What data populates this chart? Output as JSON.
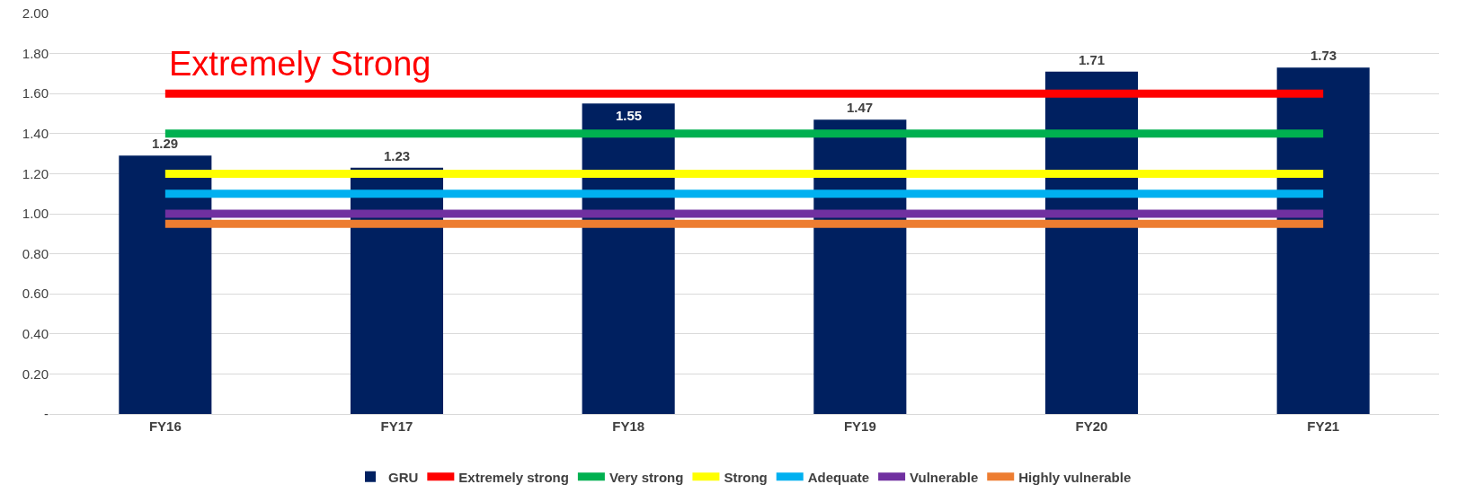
{
  "chart_data": {
    "type": "bar",
    "categories": [
      "FY16",
      "FY17",
      "FY18",
      "FY19",
      "FY20",
      "FY21"
    ],
    "series": [
      {
        "name": "GRU",
        "color": "#002060",
        "values": [
          1.29,
          1.23,
          1.55,
          1.47,
          1.71,
          1.73
        ],
        "value_labels": [
          "1.29",
          "1.23",
          "1.55",
          "1.47",
          "1.71",
          "1.73"
        ]
      },
      {
        "name": "Extremely strong",
        "type": "line",
        "color": "#ff0000",
        "values": [
          1.6,
          1.6,
          1.6,
          1.6,
          1.6,
          1.6
        ]
      },
      {
        "name": "Very strong",
        "type": "line",
        "color": "#00b050",
        "values": [
          1.4,
          1.4,
          1.4,
          1.4,
          1.4,
          1.4
        ]
      },
      {
        "name": "Strong",
        "type": "line",
        "color": "#ffff00",
        "values": [
          1.2,
          1.2,
          1.2,
          1.2,
          1.2,
          1.2
        ]
      },
      {
        "name": "Adequate",
        "type": "line",
        "color": "#00b0f0",
        "values": [
          1.1,
          1.1,
          1.1,
          1.1,
          1.1,
          1.1
        ]
      },
      {
        "name": "Vulnerable",
        "type": "line",
        "color": "#7030a0",
        "values": [
          1.0,
          1.0,
          1.0,
          1.0,
          1.0,
          1.0
        ]
      },
      {
        "name": "Highly vulnerable",
        "type": "line",
        "color": "#ed7d31",
        "values": [
          0.95,
          0.95,
          0.95,
          0.95,
          0.95,
          0.95
        ]
      }
    ],
    "ylim": [
      0,
      2
    ],
    "yticks": [
      {
        "value": 0,
        "label": "-"
      },
      {
        "value": 0.2,
        "label": "0.20"
      },
      {
        "value": 0.4,
        "label": "0.40"
      },
      {
        "value": 0.6,
        "label": "0.60"
      },
      {
        "value": 0.8,
        "label": "0.80"
      },
      {
        "value": 1,
        "label": "1.00"
      },
      {
        "value": 1.2,
        "label": "1.20"
      },
      {
        "value": 1.4,
        "label": "1.40"
      },
      {
        "value": 1.6,
        "label": "1.60"
      },
      {
        "value": 1.8,
        "label": "1.80"
      },
      {
        "value": 2,
        "label": "2.00"
      }
    ],
    "grid": "y",
    "legend": "bottom",
    "marker": "none",
    "line_style": "solid",
    "annotations": [
      "Extremely Strong"
    ]
  }
}
